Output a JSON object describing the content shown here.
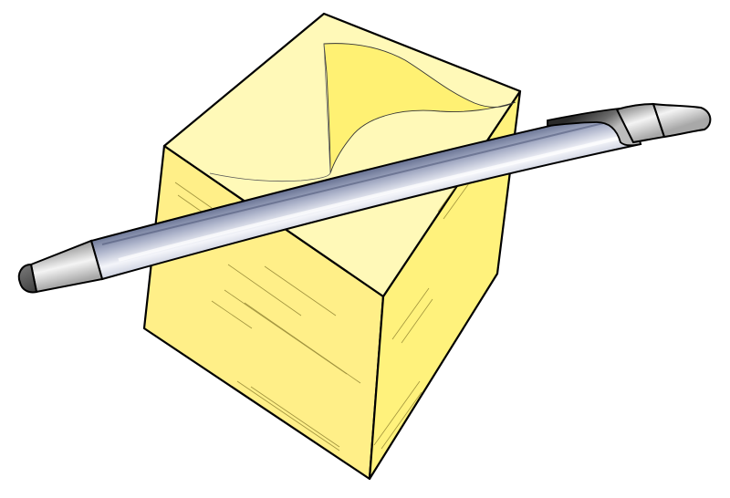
{
  "illustration": {
    "subject": [
      "sticky-note-cube",
      "ballpoint-pen"
    ],
    "colors": {
      "background": "#ffffff",
      "outline": "#000000",
      "note_top": "#fff9b8",
      "note_curl": "#fff173",
      "note_side_left": "#ffef88",
      "note_side_right": "#fff27c",
      "pen_body_dark": "#6f7a99",
      "pen_body_light": "#f4f5fa",
      "pen_metal_dark": "#8a8a8a",
      "pen_metal_light": "#f2f2f2",
      "pen_tip": "#555555"
    }
  }
}
